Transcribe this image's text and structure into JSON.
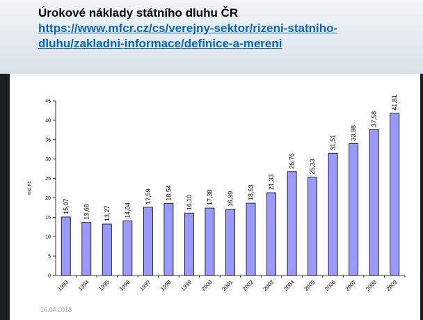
{
  "title": "Úrokové náklady státního dluhu ČR",
  "link": "https://www.mfcr.cz/cs/verejny-sektor/rizeni-statniho-dluhu/zakladni-informace/definice-a-mereni",
  "date": "16.04.2018",
  "chart_data": {
    "type": "bar",
    "ylabel": "mld. Kč",
    "categories": [
      "1993",
      "1994",
      "1995",
      "1996",
      "1997",
      "1998",
      "1999",
      "2000",
      "2001",
      "2002",
      "2003",
      "2004",
      "2005",
      "2006",
      "2007",
      "2008",
      "2009"
    ],
    "values": [
      15.07,
      13.68,
      13.27,
      14.04,
      17.59,
      18.54,
      16.1,
      17.38,
      16.99,
      18.63,
      21.33,
      26.76,
      25.33,
      31.51,
      33.98,
      37.58,
      41.81
    ],
    "value_labels": [
      "15,07",
      "13,68",
      "13,27",
      "14,04",
      "17,59",
      "18,54",
      "16,10",
      "17,38",
      "16,99",
      "18,63",
      "21,33",
      "26,76",
      "25,33",
      "31,51",
      "33,98",
      "37,58",
      "41,81"
    ],
    "color": "#9999ff",
    "ylim": [
      0,
      45
    ],
    "yticks": [
      0,
      5,
      10,
      15,
      20,
      25,
      30,
      35,
      40,
      45
    ]
  }
}
